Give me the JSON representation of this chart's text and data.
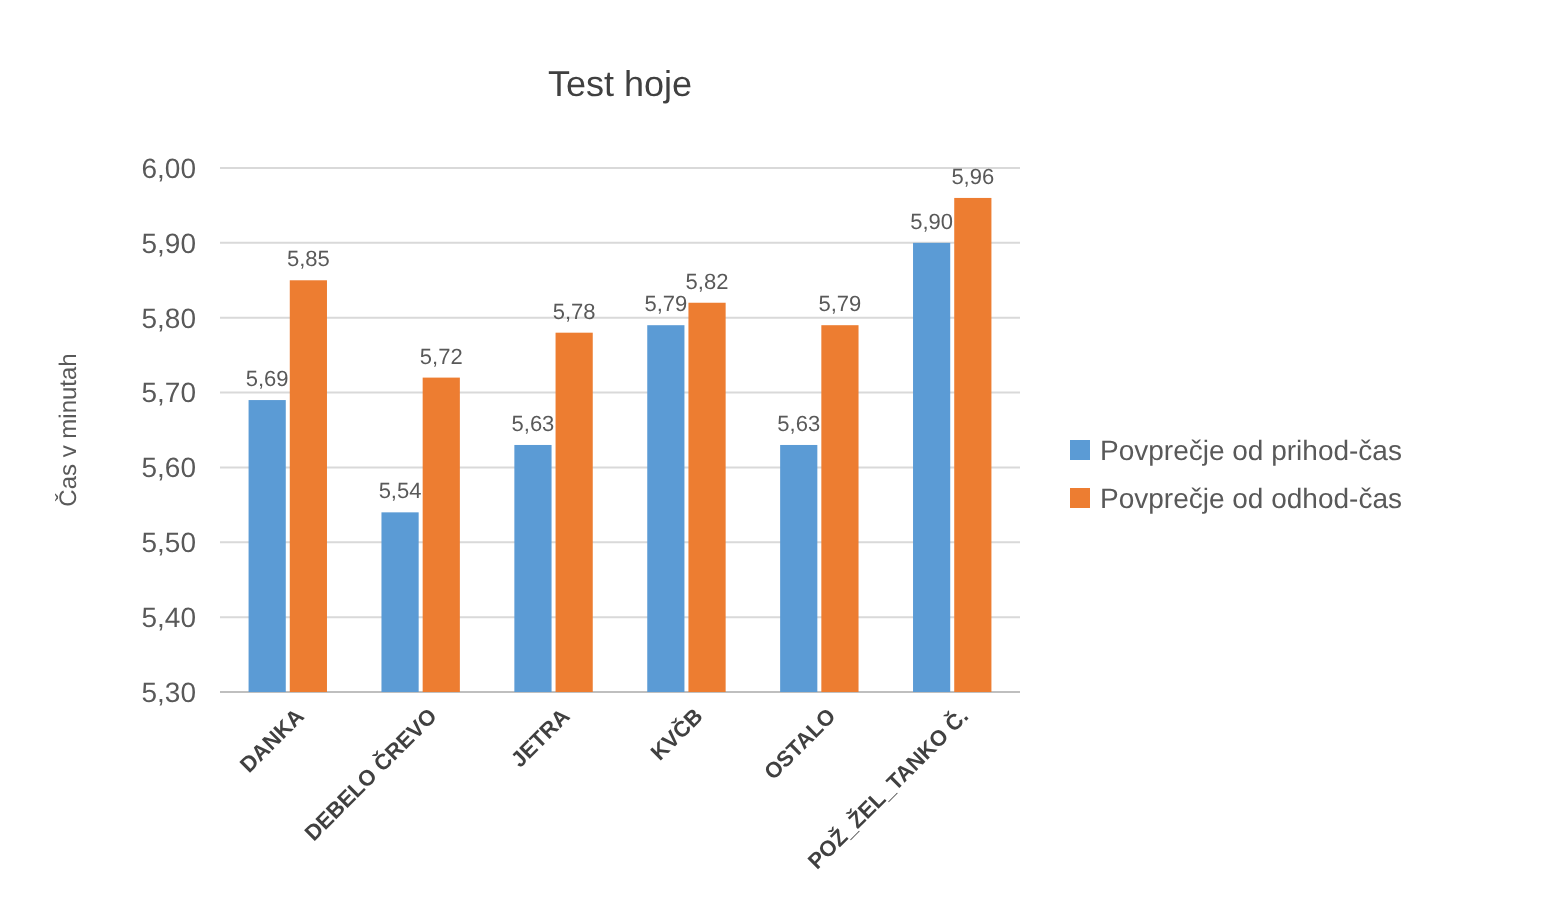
{
  "chart_data": {
    "type": "bar",
    "title": "Test hoje",
    "ylabel": "Čas v minutah",
    "categories": [
      "DANKA",
      "DEBELO ČREVO",
      "JETRA",
      "KVČB",
      "OSTALO",
      "POŽ_ŽEL_TANKO Č."
    ],
    "series": [
      {
        "name": "Povprečje od prihod-čas",
        "color": "#5b9bd5",
        "values": [
          5.69,
          5.54,
          5.63,
          5.79,
          5.63,
          5.9
        ],
        "value_labels": [
          "5,69",
          "5,54",
          "5,63",
          "5,79",
          "5,63",
          "5,90"
        ]
      },
      {
        "name": "Povprečje od odhod-čas",
        "color": "#ed7d31",
        "values": [
          5.85,
          5.72,
          5.78,
          5.82,
          5.79,
          5.96
        ],
        "value_labels": [
          "5,85",
          "5,72",
          "5,78",
          "5,82",
          "5,79",
          "5,96"
        ]
      }
    ],
    "ylim": [
      5.3,
      6.0
    ],
    "yticks": [
      {
        "value": 5.3,
        "label": "5,30"
      },
      {
        "value": 5.4,
        "label": "5,40"
      },
      {
        "value": 5.5,
        "label": "5,50"
      },
      {
        "value": 5.6,
        "label": "5,60"
      },
      {
        "value": 5.7,
        "label": "5,70"
      },
      {
        "value": 5.8,
        "label": "5,80"
      },
      {
        "value": 5.9,
        "label": "5,90"
      },
      {
        "value": 6.0,
        "label": "6,00"
      }
    ],
    "grid": "y",
    "legend": "right"
  }
}
